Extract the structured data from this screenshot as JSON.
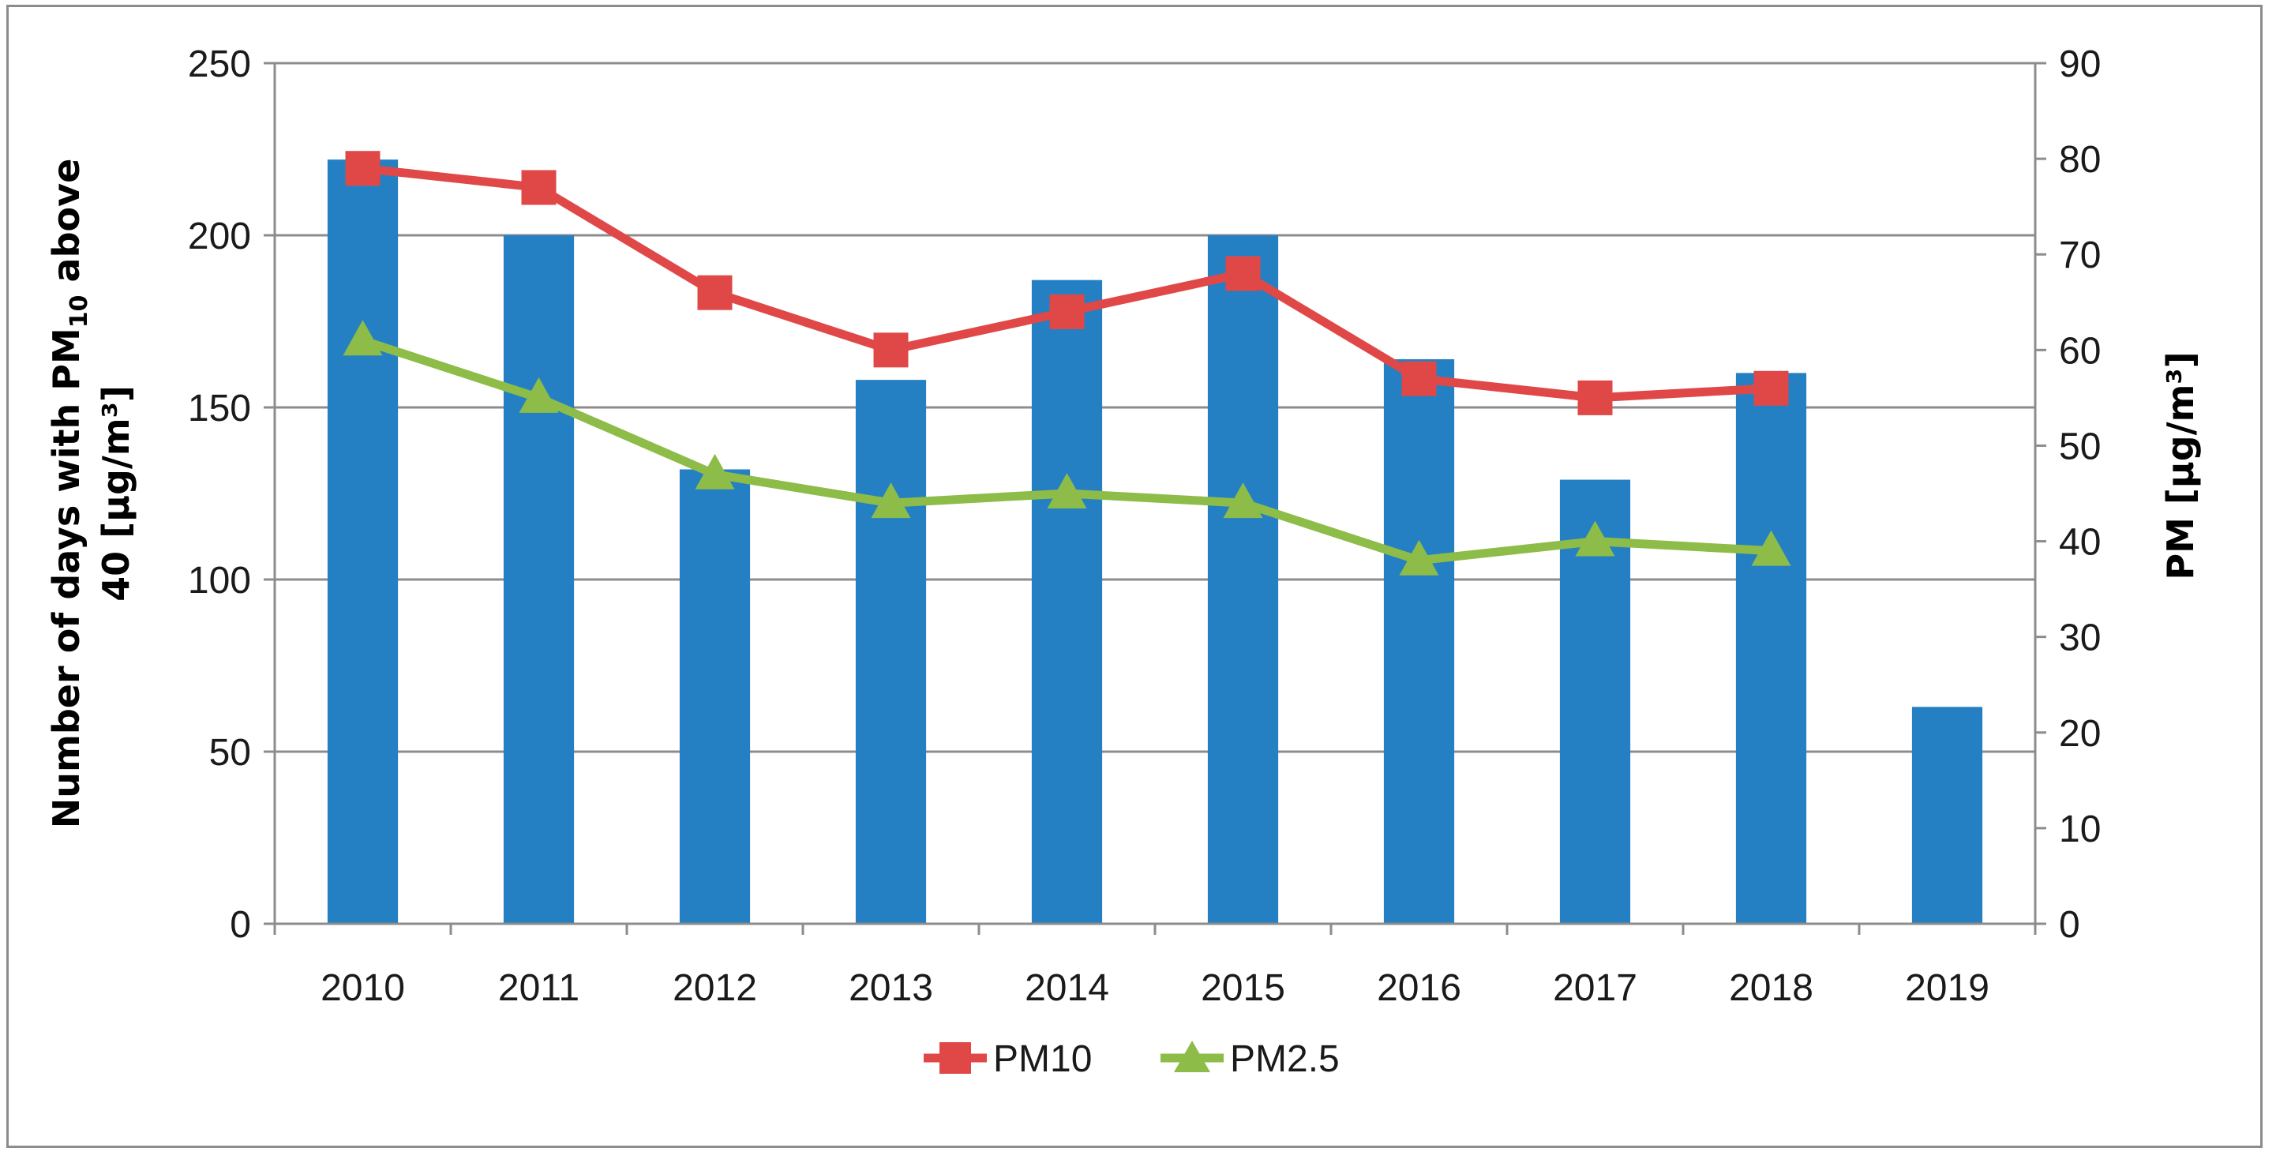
{
  "chart_data": {
    "type": "bar+line",
    "categories": [
      "2010",
      "2011",
      "2012",
      "2013",
      "2014",
      "2015",
      "2016",
      "2017",
      "2018",
      "2019"
    ],
    "bar_series": {
      "name": "Number of days with PM10 above 40 [µg/m³]",
      "axis": "left",
      "color": "#2480c2",
      "values": [
        222,
        200,
        132,
        158,
        187,
        200,
        164,
        129,
        160,
        63
      ]
    },
    "line_series": [
      {
        "name": "PM10",
        "axis": "right",
        "color": "#e04848",
        "marker": "square",
        "values": [
          79,
          77,
          66,
          60,
          64,
          68,
          57,
          55,
          56,
          null
        ]
      },
      {
        "name": "PM2.5",
        "axis": "right",
        "color": "#8dbc48",
        "marker": "triangle",
        "values": [
          61,
          55,
          47,
          44,
          45,
          44,
          38,
          40,
          39,
          null
        ]
      }
    ],
    "left_axis": {
      "title_main": "Number of days with PM",
      "title_sub": "10",
      "title_tail": " above",
      "title_line2": "40 [µg/m³]",
      "ylim": [
        0,
        250
      ],
      "ticks": [
        "0",
        "50",
        "100",
        "150",
        "200",
        "250"
      ]
    },
    "right_axis": {
      "title": "PM [µg/m³]",
      "ylim": [
        0,
        90
      ],
      "ticks": [
        "0",
        "10",
        "20",
        "30",
        "40",
        "50",
        "60",
        "70",
        "80",
        "90"
      ]
    },
    "grid": true,
    "legend": {
      "position": "bottom-center",
      "entries": [
        "PM10",
        "PM2.5"
      ]
    }
  }
}
